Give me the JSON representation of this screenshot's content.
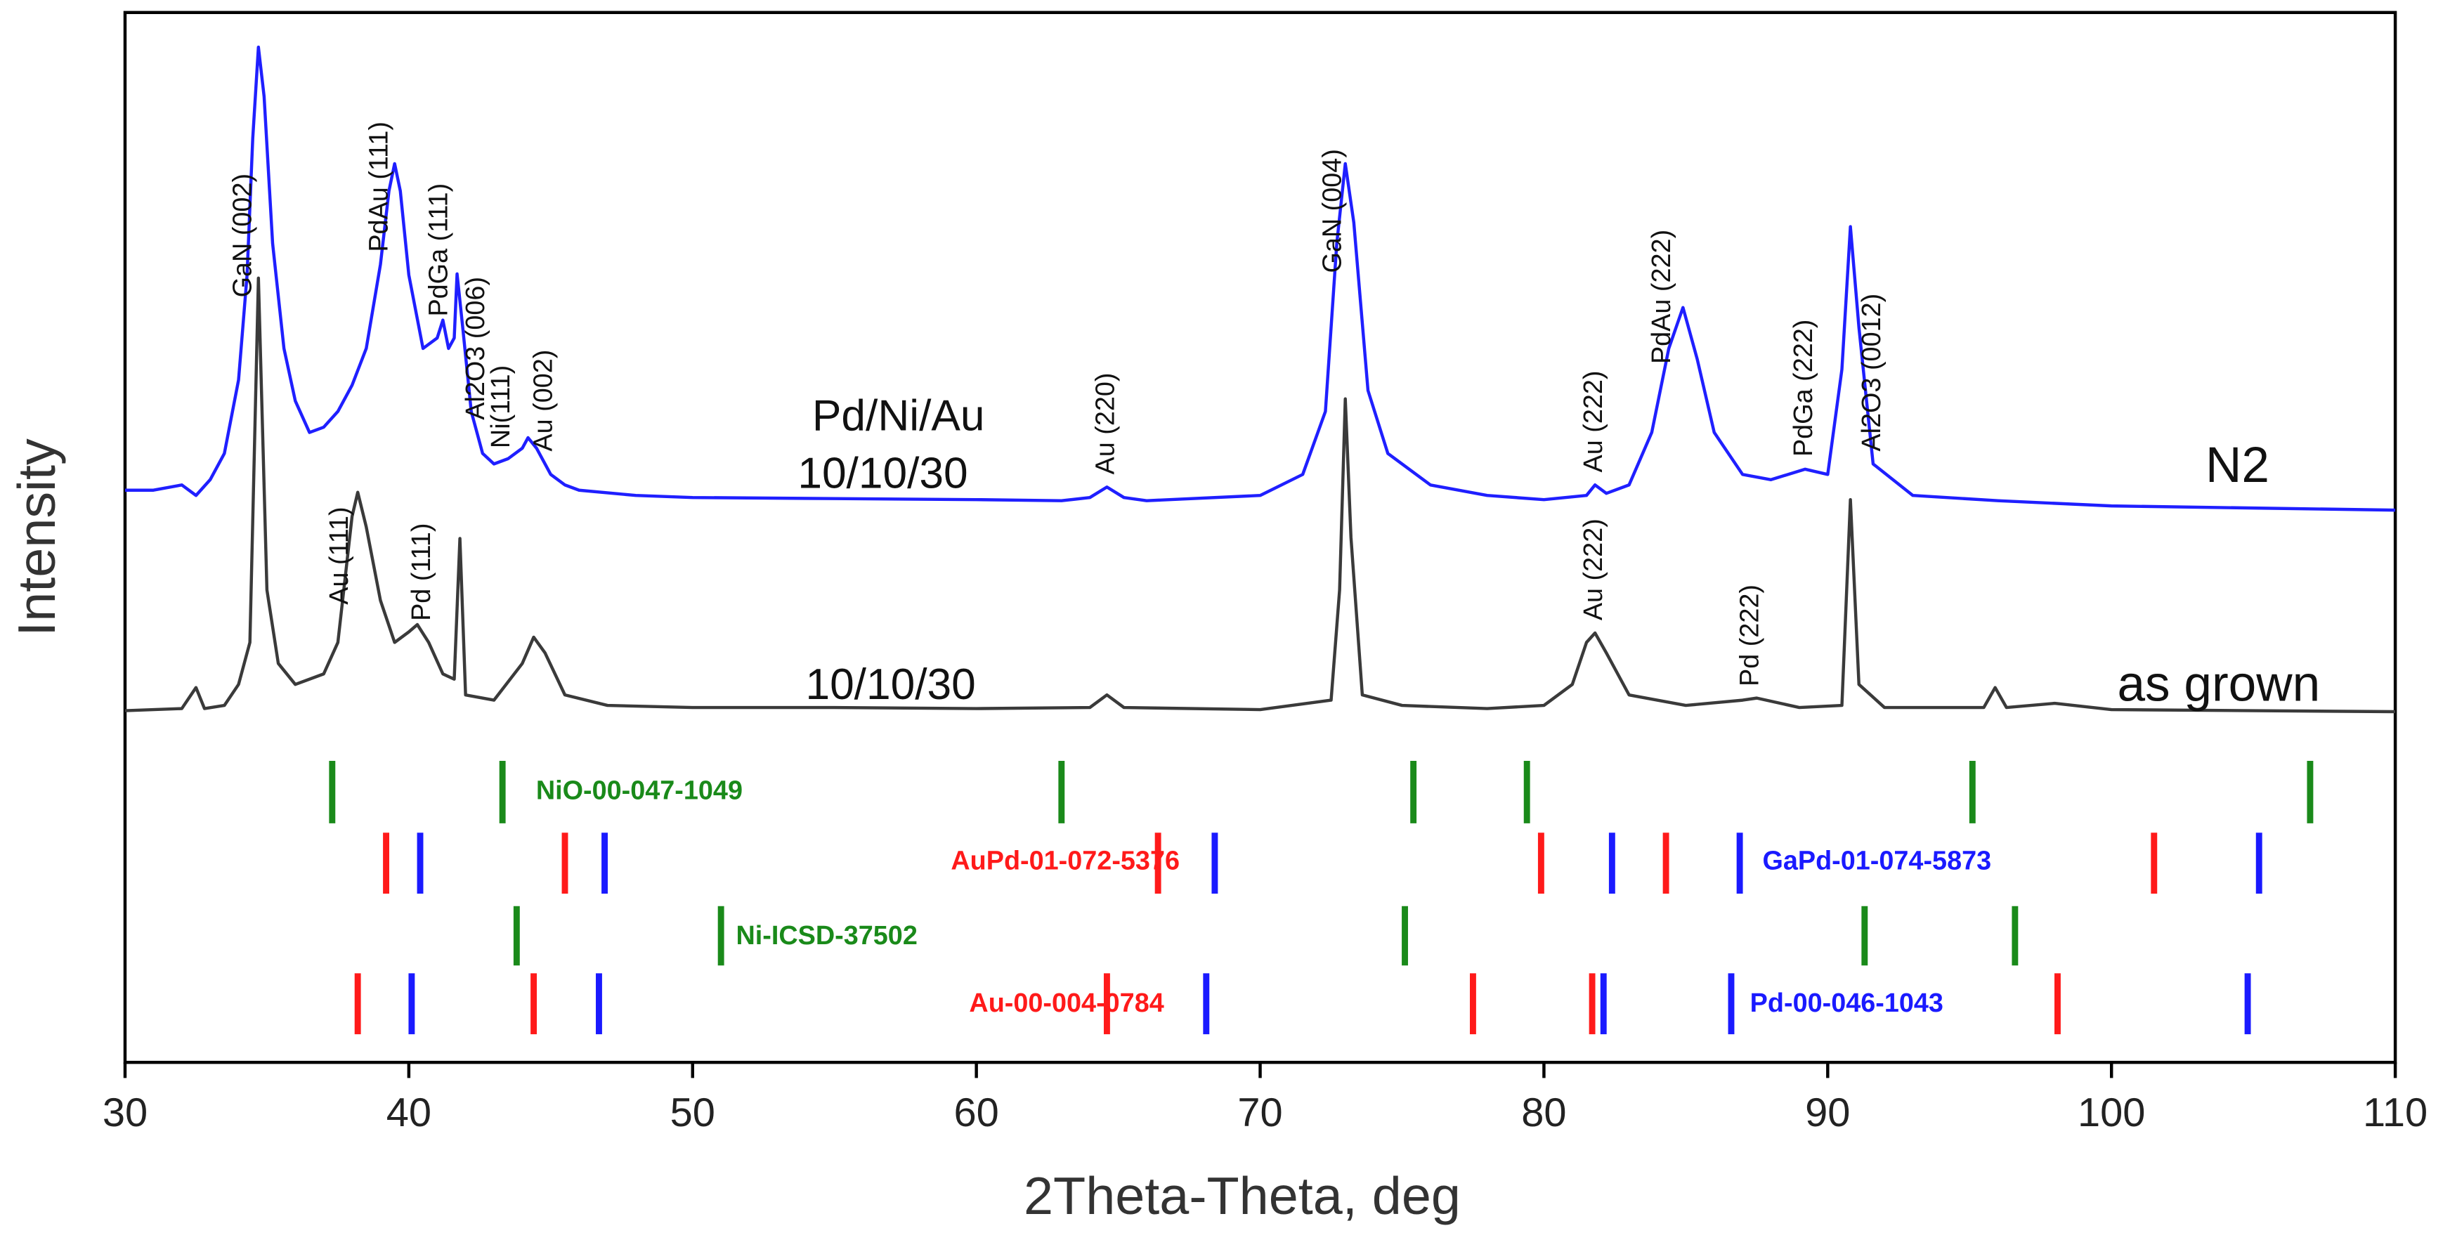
{
  "chart_data": {
    "type": "line",
    "xlabel": "2Theta-Theta, deg",
    "ylabel": "Intensity",
    "xlim": [
      30,
      110
    ],
    "xticks": [
      30,
      40,
      50,
      60,
      70,
      80,
      90,
      100,
      110
    ],
    "ylim": [
      0,
      100
    ],
    "grid": false,
    "labels": [
      "Pd/Ni/Au",
      "10/10/30",
      "N2",
      "10/10/30",
      "as grown"
    ],
    "series": [
      {
        "name": "N2",
        "color": "#1f1fff",
        "x": [
          30,
          31,
          32,
          32.5,
          33,
          33.5,
          34,
          34.3,
          34.5,
          34.7,
          34.9,
          35.2,
          35.6,
          36,
          36.5,
          37,
          37.5,
          38,
          38.5,
          39,
          39.3,
          39.5,
          39.7,
          40,
          40.5,
          41,
          41.2,
          41.4,
          41.6,
          41.7,
          41.9,
          42.2,
          42.6,
          43,
          43.5,
          44,
          44.2,
          44.5,
          45,
          45.5,
          46,
          48,
          50,
          55,
          60,
          63,
          64,
          64.6,
          65.2,
          66,
          70,
          71.5,
          72.3,
          72.7,
          73,
          73.3,
          73.8,
          74.5,
          76,
          78,
          80,
          81.5,
          81.8,
          82.2,
          83,
          83.8,
          84.4,
          84.9,
          85.4,
          86,
          87,
          88,
          89.2,
          90,
          90.5,
          90.8,
          91.1,
          91.6,
          93,
          96,
          100,
          105,
          110
        ],
        "values": [
          54.5,
          54.5,
          55,
          54,
          55.5,
          58,
          65,
          75,
          88,
          96.7,
          92,
          78,
          68,
          63,
          60,
          60.5,
          62,
          64.5,
          68,
          76,
          83,
          85.6,
          83,
          75,
          68,
          69,
          70.7,
          68,
          69,
          75.1,
          70,
          62,
          58,
          57,
          57.5,
          58.5,
          59.5,
          58.5,
          56,
          55,
          54.5,
          54,
          53.8,
          53.7,
          53.6,
          53.5,
          53.8,
          54.8,
          53.8,
          53.5,
          54,
          56,
          62,
          78,
          85.6,
          80,
          64,
          58,
          55,
          54,
          53.6,
          54,
          55,
          54.2,
          55,
          60,
          68,
          71.9,
          67,
          60,
          56,
          55.5,
          56.5,
          56,
          66,
          79.6,
          70,
          57,
          54,
          53.5,
          53,
          52.8,
          52.6
        ],
        "annotations": [
          {
            "text": "GaN (002)",
            "x": 34.2
          },
          {
            "text": "PdAu (111)",
            "x": 39.0
          },
          {
            "text": "PdGa (111)",
            "x": 41.1
          },
          {
            "text": "Al2O3 (006)",
            "x": 42.4
          },
          {
            "text": "Ni(111)",
            "x": 43.3
          },
          {
            "text": "Au (002)",
            "x": 44.8
          },
          {
            "text": "Au (220)",
            "x": 64.6
          },
          {
            "text": "GaN (004)",
            "x": 72.6
          },
          {
            "text": "Au (222)",
            "x": 81.8
          },
          {
            "text": "PdAu (222)",
            "x": 84.2
          },
          {
            "text": "PdGa (222)",
            "x": 89.2
          },
          {
            "text": "Al2O3 (0012)",
            "x": 91.6
          }
        ]
      },
      {
        "name": "as grown",
        "color": "#3a3a3a",
        "x": [
          30,
          32,
          32.5,
          32.8,
          33.5,
          34,
          34.4,
          34.7,
          35,
          35.4,
          36,
          37,
          37.5,
          38,
          38.2,
          38.5,
          39,
          39.5,
          40,
          40.3,
          40.7,
          41.2,
          41.6,
          41.8,
          42,
          43,
          44,
          44.4,
          44.8,
          45.5,
          47,
          50,
          55,
          60,
          64,
          64.6,
          65.2,
          70,
          72.5,
          72.8,
          73,
          73.2,
          73.6,
          75,
          78,
          80,
          81,
          81.5,
          81.8,
          82.2,
          83,
          85,
          87,
          87.5,
          89,
          90.5,
          90.8,
          91.1,
          92,
          95.5,
          95.9,
          96.3,
          98,
          100,
          105,
          110
        ],
        "values": [
          33.5,
          33.7,
          35.7,
          33.7,
          34,
          36,
          40,
          74.7,
          45,
          38,
          36,
          37,
          40,
          52,
          54.3,
          51,
          44,
          40,
          41,
          41.7,
          40,
          37,
          36.5,
          49.9,
          35,
          34.5,
          38,
          40.5,
          39,
          35,
          34,
          33.8,
          33.8,
          33.7,
          33.8,
          35,
          33.8,
          33.6,
          34.5,
          45,
          63.2,
          50,
          35,
          34,
          33.7,
          34,
          36,
          40,
          40.9,
          39,
          35,
          34,
          34.5,
          34.7,
          33.8,
          34,
          53.6,
          36,
          33.8,
          33.8,
          35.7,
          33.8,
          34.2,
          33.6,
          33.5,
          33.4
        ],
        "annotations": [
          {
            "text": "Au (111)",
            "x": 37.6
          },
          {
            "text": "Pd (111)",
            "x": 40.5
          },
          {
            "text": "Au (222)",
            "x": 81.8
          },
          {
            "text": "Pd (222)",
            "x": 87.3
          }
        ]
      }
    ],
    "references": [
      {
        "name": "NiO-00-047-1049",
        "color": "#1a8a1a",
        "positions": [
          37.3,
          43.3,
          63.0,
          75.4,
          79.4,
          95.1,
          107.0
        ]
      },
      {
        "name": "AuPd-01-072-5376",
        "color": "#ff1a1a",
        "positions": [
          39.2,
          45.5,
          66.4,
          79.9,
          84.3,
          101.5
        ]
      },
      {
        "name": "GaPd-01-074-5873",
        "color": "#1a1aff",
        "positions": [
          40.4,
          46.9,
          68.4,
          82.4,
          86.9,
          105.2
        ]
      },
      {
        "name": "Ni-ICSD-37502",
        "color": "#1a8a1a",
        "positions": [
          43.8,
          51.0,
          75.1,
          91.3,
          96.6
        ]
      },
      {
        "name": "Au-00-004-0784",
        "color": "#ff1a1a",
        "positions": [
          38.2,
          44.4,
          64.6,
          77.5,
          81.7,
          98.1
        ]
      },
      {
        "name": "Pd-00-046-1043",
        "color": "#1a1aff",
        "positions": [
          40.1,
          46.7,
          68.1,
          82.1,
          86.6,
          104.8
        ]
      }
    ]
  }
}
